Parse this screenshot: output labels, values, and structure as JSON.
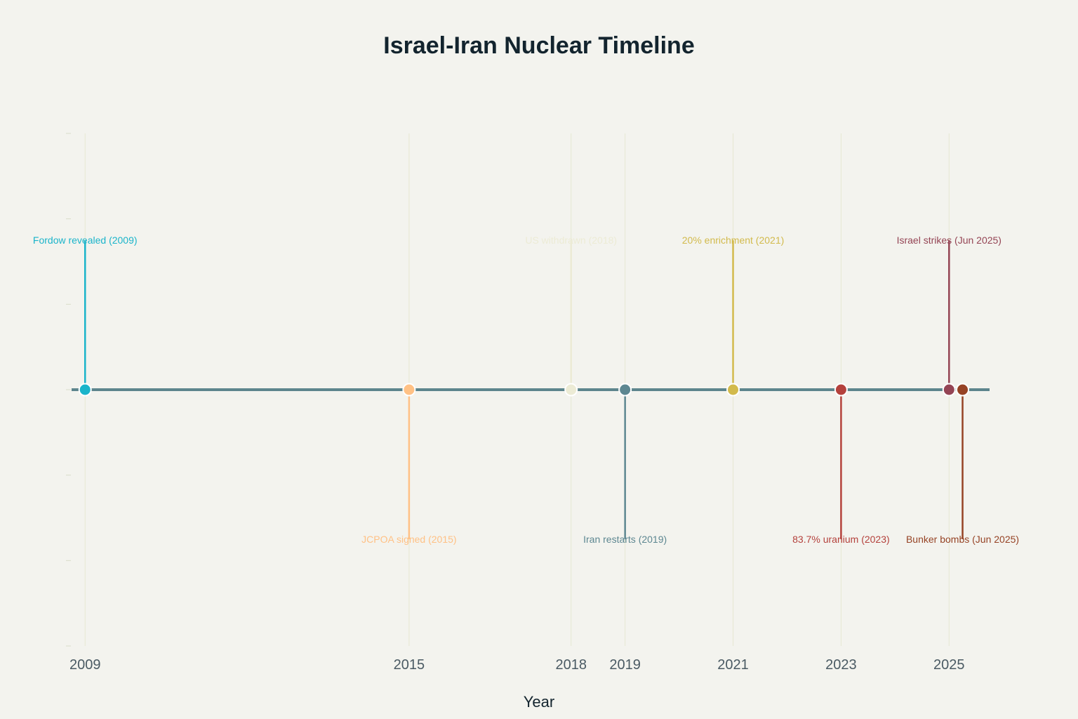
{
  "chart_data": {
    "type": "timeline",
    "title": "Israel-Iran Nuclear Timeline",
    "xlabel": "Year",
    "xlim": [
      2008.75,
      2025.75
    ],
    "ylim": [
      -3,
      3
    ],
    "x_ticks": [
      2009,
      2015,
      2018,
      2019,
      2021,
      2023,
      2025
    ],
    "axis_color": "#5d858d",
    "grid_color": "#e6e8d2",
    "events": [
      {
        "x": 2009.0,
        "direction": 1.75,
        "label": "Fordow revealed (2009)",
        "color": "#1ab4ca"
      },
      {
        "x": 2015.0,
        "direction": -1.75,
        "label": "JCPOA signed (2015)",
        "color": "#ffc185"
      },
      {
        "x": 2018.0,
        "direction": 1.75,
        "label": "US withdrawn (2018)",
        "color": "#ecebd5"
      },
      {
        "x": 2019.0,
        "direction": -1.75,
        "label": "Iran restarts (2019)",
        "color": "#5d8791"
      },
      {
        "x": 2021.0,
        "direction": 1.75,
        "label": "20% enrichment (2021)",
        "color": "#d2ba4c"
      },
      {
        "x": 2023.0,
        "direction": -1.75,
        "label": "83.7% uranium (2023)",
        "color": "#b4413c"
      },
      {
        "x": 2025.0,
        "direction": 1.75,
        "label": "Israel strikes (Jun 2025)",
        "color": "#944454"
      },
      {
        "x": 2025.25,
        "direction": -1.75,
        "label": "Bunker bombs (Jun 2025)",
        "color": "#964325"
      }
    ]
  }
}
